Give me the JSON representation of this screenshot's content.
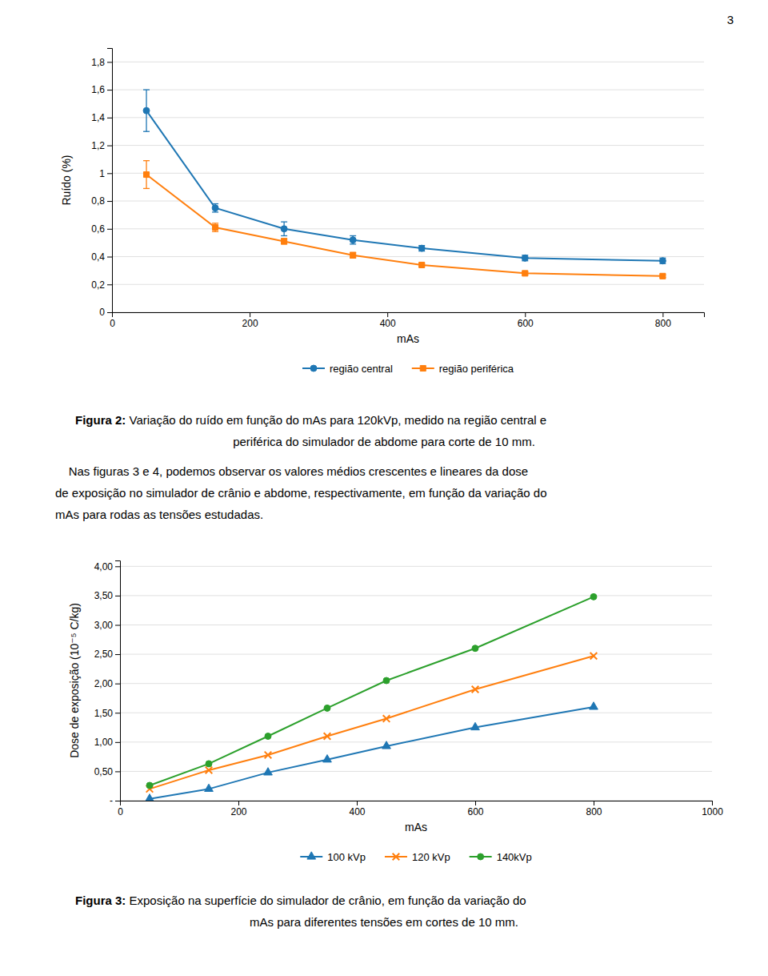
{
  "chart_data": [
    {
      "type": "line",
      "x_label": "mAs",
      "y_label": "Ruído (%)",
      "x": [
        50,
        150,
        250,
        350,
        450,
        600,
        800
      ],
      "series": [
        {
          "name": "região central",
          "marker": "circle",
          "values": [
            1.45,
            0.75,
            0.6,
            0.52,
            0.46,
            0.39,
            0.37
          ],
          "yerr": [
            0.15,
            0.03,
            0.05,
            0.03,
            0.02,
            0.02,
            0.02
          ]
        },
        {
          "name": "região periférica",
          "marker": "square",
          "values": [
            0.99,
            0.61,
            0.51,
            0.41,
            0.34,
            0.28,
            0.26
          ],
          "yerr": [
            0.1,
            0.03,
            0.02,
            0.02,
            0.01,
            0.01,
            0.01
          ]
        }
      ],
      "xlim": [
        0,
        860
      ],
      "xticks": [
        0,
        200,
        400,
        600,
        800
      ],
      "ylim": [
        0,
        1.9
      ],
      "yticks": [
        0,
        {
          "value": 0.2,
          "label": "0,2"
        },
        {
          "value": 0.4,
          "label": "0,4"
        },
        {
          "value": 0.6,
          "label": "0,6"
        },
        {
          "value": 0.8,
          "label": "0,8"
        },
        1,
        {
          "value": 1.2,
          "label": "1,2"
        },
        {
          "value": 1.4,
          "label": "1,4"
        },
        {
          "value": 1.6,
          "label": "1,6"
        },
        {
          "value": 1.8,
          "label": "1,8"
        }
      ],
      "grid": true,
      "legend": "bottom",
      "annotations": [
        "3",
        "Figura 2:",
        " Variação do ruído em função do mAs para 120kVp, medido na região central e",
        "periférica do simulador de abdome para corte de 10 mm.",
        "    Nas figuras 3 e 4, podemos observar os valores médios crescentes e lineares da dose",
        "de exposição no simulador de crânio e abdome, respectivamente, em função da variação do",
        "mAs para rodas as tensões estudadas."
      ]
    },
    {
      "type": "line",
      "x_label": "mAs",
      "y_label": "Dose de exposição (10⁻⁵ C/kg)",
      "x": [
        50,
        150,
        250,
        350,
        450,
        600,
        800
      ],
      "series": [
        {
          "name": "100 kVp",
          "marker": "triangle",
          "values": [
            0.03,
            0.2,
            0.48,
            0.7,
            0.93,
            1.25,
            1.6
          ]
        },
        {
          "name": "120 kVp",
          "marker": "x",
          "values": [
            0.2,
            0.52,
            0.78,
            1.1,
            1.4,
            1.9,
            2.47
          ]
        },
        {
          "name": "140kVp",
          "marker": "circle",
          "values": [
            0.26,
            0.63,
            1.1,
            1.58,
            2.05,
            2.6,
            3.48
          ]
        }
      ],
      "xlim": [
        0,
        1000
      ],
      "xticks": [
        0,
        200,
        400,
        600,
        800,
        1000
      ],
      "ylim": [
        0,
        4.1
      ],
      "yticks": [
        {
          "value": 0.0,
          "label": "-"
        },
        {
          "value": 0.5,
          "label": "0,50"
        },
        {
          "value": 1.0,
          "label": "1,00"
        },
        {
          "value": 1.5,
          "label": "1,50"
        },
        {
          "value": 2.0,
          "label": "2,00"
        },
        {
          "value": 2.5,
          "label": "2,50"
        },
        {
          "value": 3.0,
          "label": "3,00"
        },
        {
          "value": 3.5,
          "label": "3,50"
        },
        {
          "value": 4.0,
          "label": "4,00"
        }
      ],
      "grid": true,
      "legend": "bottom",
      "annotations": [
        "Figura 3:",
        " Exposição na superfície do simulador de crânio, em função da variação do",
        "mAs para diferentes tensões em cortes de 10 mm."
      ]
    }
  ]
}
